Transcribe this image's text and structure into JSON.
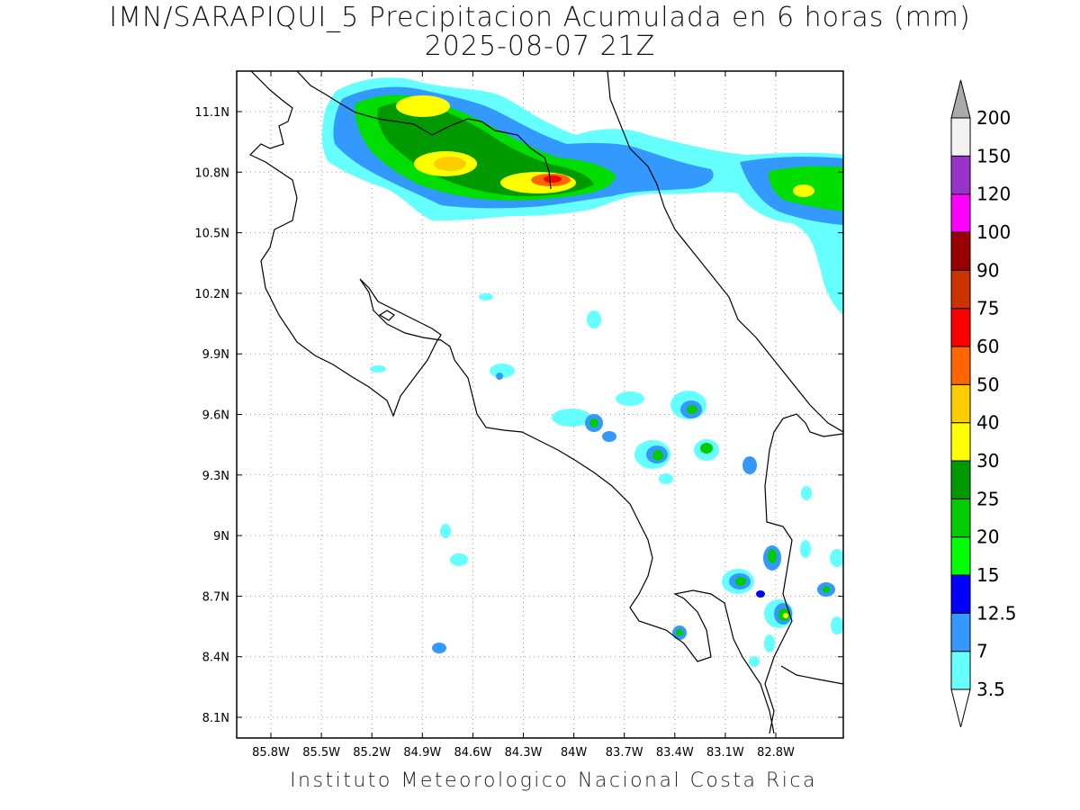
{
  "title": {
    "line1": "IMN/SARAPIQUI_5 Precipitacion Acumulada en 6 horas (mm)",
    "line2": "2025-08-07 21Z"
  },
  "footer": "Instituto Meteorologico Nacional Costa Rica",
  "map": {
    "x_ticks": [
      "85.8W",
      "85.5W",
      "85.2W",
      "84.9W",
      "84.6W",
      "84.3W",
      "84W",
      "83.7W",
      "83.4W",
      "83.1W",
      "82.8W"
    ],
    "y_ticks": [
      "11.1N",
      "10.8N",
      "10.5N",
      "10.2N",
      "9.9N",
      "9.6N",
      "9.3N",
      "9N",
      "8.7N",
      "8.4N",
      "8.1N"
    ]
  },
  "colorbar": {
    "levels": [
      {
        "label": "3.5",
        "color": "#66ffff"
      },
      {
        "label": "7",
        "color": "#3399ff"
      },
      {
        "label": "12.5",
        "color": "#0000ff"
      },
      {
        "label": "15",
        "color": "#00ff00"
      },
      {
        "label": "20",
        "color": "#00cc00"
      },
      {
        "label": "25",
        "color": "#009900"
      },
      {
        "label": "30",
        "color": "#ffff00"
      },
      {
        "label": "40",
        "color": "#ffcc00"
      },
      {
        "label": "50",
        "color": "#ff6600"
      },
      {
        "label": "60",
        "color": "#ff0000"
      },
      {
        "label": "75",
        "color": "#cc3300"
      },
      {
        "label": "90",
        "color": "#990000"
      },
      {
        "label": "100",
        "color": "#ff00ff"
      },
      {
        "label": "120",
        "color": "#9933cc"
      },
      {
        "label": "150",
        "color": "#f2f2f2"
      },
      {
        "label": "200",
        "color": "#aaaaaa"
      }
    ]
  }
}
